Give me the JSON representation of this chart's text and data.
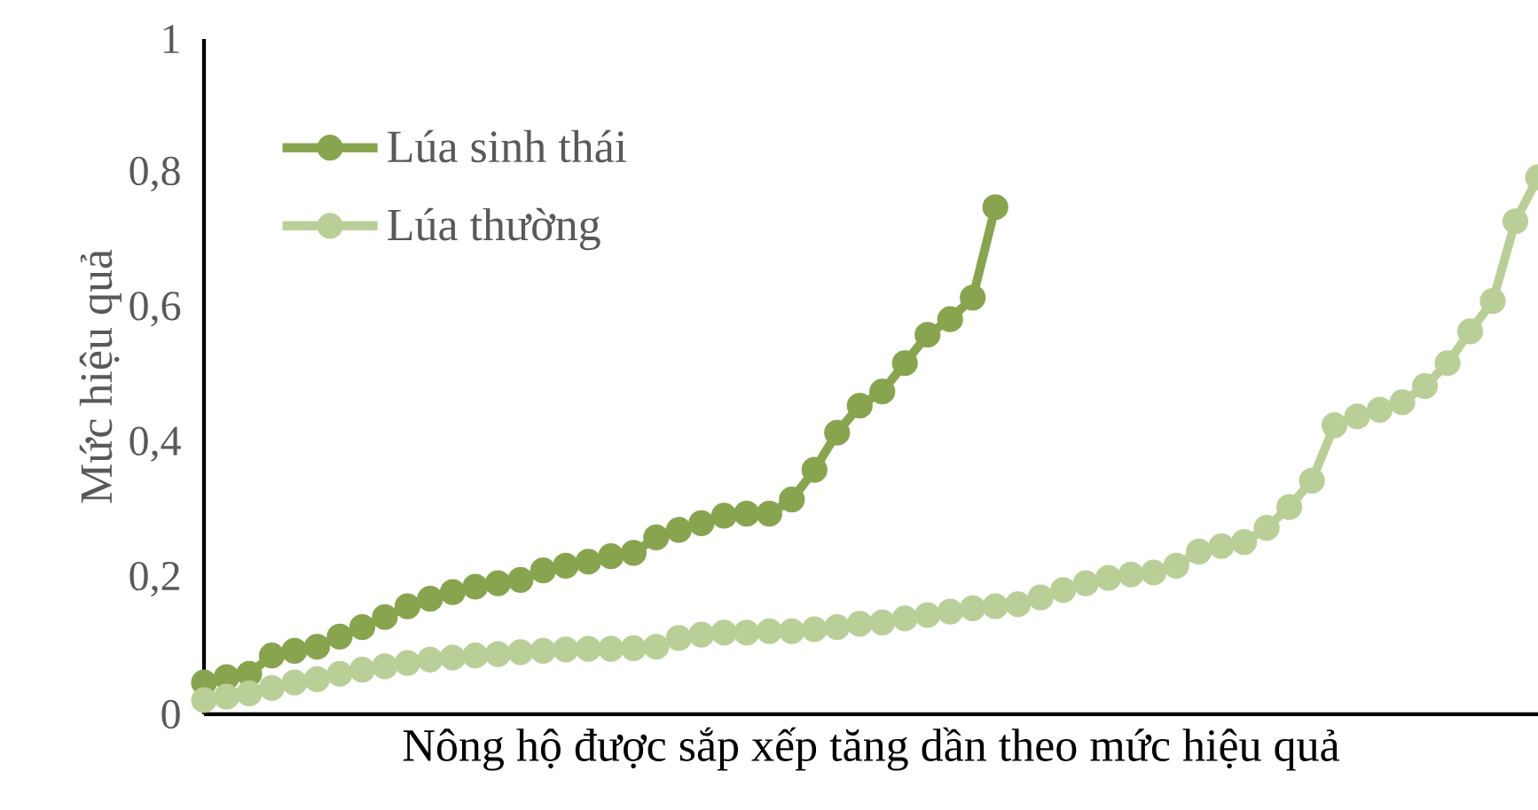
{
  "chart_data": {
    "type": "line",
    "xlabel": "Nông hộ được sắp xếp tăng dần theo mức hiệu quả",
    "ylabel": "Mức hiệu quả",
    "categories": [
      null,
      null,
      null,
      null,
      null,
      null,
      null,
      null,
      null,
      null,
      null,
      null,
      null,
      null,
      null,
      null,
      null,
      null,
      null,
      null,
      null,
      null,
      null,
      null,
      null,
      null,
      null,
      null,
      null,
      null,
      null,
      null,
      null,
      null,
      null,
      null,
      null,
      null,
      null,
      null,
      null,
      null,
      null,
      null,
      null,
      null,
      null,
      null,
      null,
      null,
      null,
      null,
      null,
      null,
      null,
      null,
      null,
      null,
      null,
      null
    ],
    "series": [
      {
        "name": "Lúa sinh thái",
        "color": "#88a44e",
        "values": [
          0.047,
          0.055,
          0.06,
          0.087,
          0.094,
          0.1,
          0.115,
          0.129,
          0.144,
          0.16,
          0.171,
          0.181,
          0.189,
          0.194,
          0.199,
          0.213,
          0.22,
          0.226,
          0.234,
          0.239,
          0.262,
          0.273,
          0.283,
          0.294,
          0.297,
          0.297,
          0.318,
          0.362,
          0.417,
          0.457,
          0.478,
          0.52,
          0.562,
          0.585,
          0.617,
          0.751,
          null,
          null,
          null,
          null,
          null,
          null,
          null,
          null,
          null,
          null,
          null,
          null,
          null,
          null,
          null,
          null,
          null,
          null,
          null,
          null,
          null,
          null,
          null,
          null
        ]
      },
      {
        "name": "Lúa thường",
        "color": "#bacf98",
        "values": [
          0.021,
          0.026,
          0.031,
          0.039,
          0.047,
          0.052,
          0.06,
          0.066,
          0.071,
          0.076,
          0.081,
          0.084,
          0.087,
          0.089,
          0.092,
          0.094,
          0.096,
          0.097,
          0.097,
          0.098,
          0.1,
          0.113,
          0.118,
          0.121,
          0.121,
          0.123,
          0.123,
          0.126,
          0.129,
          0.134,
          0.136,
          0.142,
          0.147,
          0.152,
          0.157,
          0.16,
          0.163,
          0.173,
          0.184,
          0.194,
          0.202,
          0.207,
          0.21,
          0.22,
          0.241,
          0.249,
          0.255,
          0.276,
          0.307,
          0.346,
          0.428,
          0.441,
          0.451,
          0.462,
          0.486,
          0.52,
          0.567,
          0.612,
          0.73,
          0.795
        ]
      }
    ],
    "ylim": [
      0,
      1
    ],
    "yticks": [
      0,
      {
        "value": 0.2,
        "label": "0,2"
      },
      {
        "value": 0.4,
        "label": "0,4"
      },
      {
        "value": 0.6,
        "label": "0,6"
      },
      {
        "value": 0.8,
        "label": "0,8"
      },
      1
    ],
    "grid": false,
    "legend": "top left",
    "marker": "circle",
    "line_style": "solid",
    "tick_labels": "y"
  }
}
